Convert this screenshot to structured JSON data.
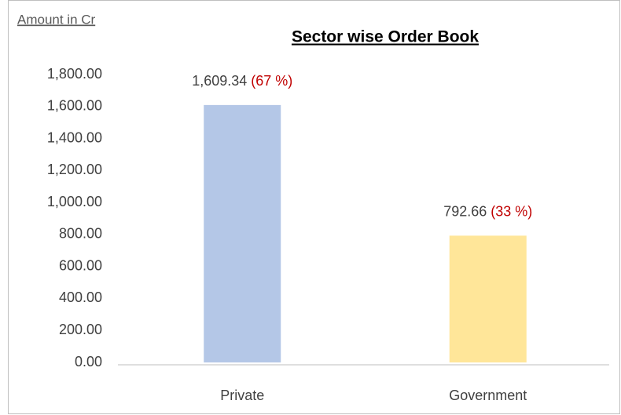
{
  "chart_data": {
    "type": "bar",
    "title": "Sector wise Order Book",
    "y_axis_label": "Amount in Cr",
    "categories": [
      "Private",
      "Government"
    ],
    "values": [
      1609.34,
      792.66
    ],
    "value_labels": [
      "1,609.34",
      "792.66"
    ],
    "share_labels": [
      "(67 %)",
      "(33 %)"
    ],
    "colors": [
      "#b4c7e7",
      "#ffe699"
    ],
    "ylim": [
      0,
      1800
    ],
    "yticks": [
      {
        "value": 0,
        "label": "0.00"
      },
      {
        "value": 200,
        "label": "200.00"
      },
      {
        "value": 400,
        "label": "400.00"
      },
      {
        "value": 600,
        "label": "600.00"
      },
      {
        "value": 800,
        "label": "800.00"
      },
      {
        "value": 1000,
        "label": "1,000.00"
      },
      {
        "value": 1200,
        "label": "1,200.00"
      },
      {
        "value": 1400,
        "label": "1,400.00"
      },
      {
        "value": 1600,
        "label": "1,600.00"
      },
      {
        "value": 1800,
        "label": "1,800.00"
      }
    ],
    "grid": false
  }
}
